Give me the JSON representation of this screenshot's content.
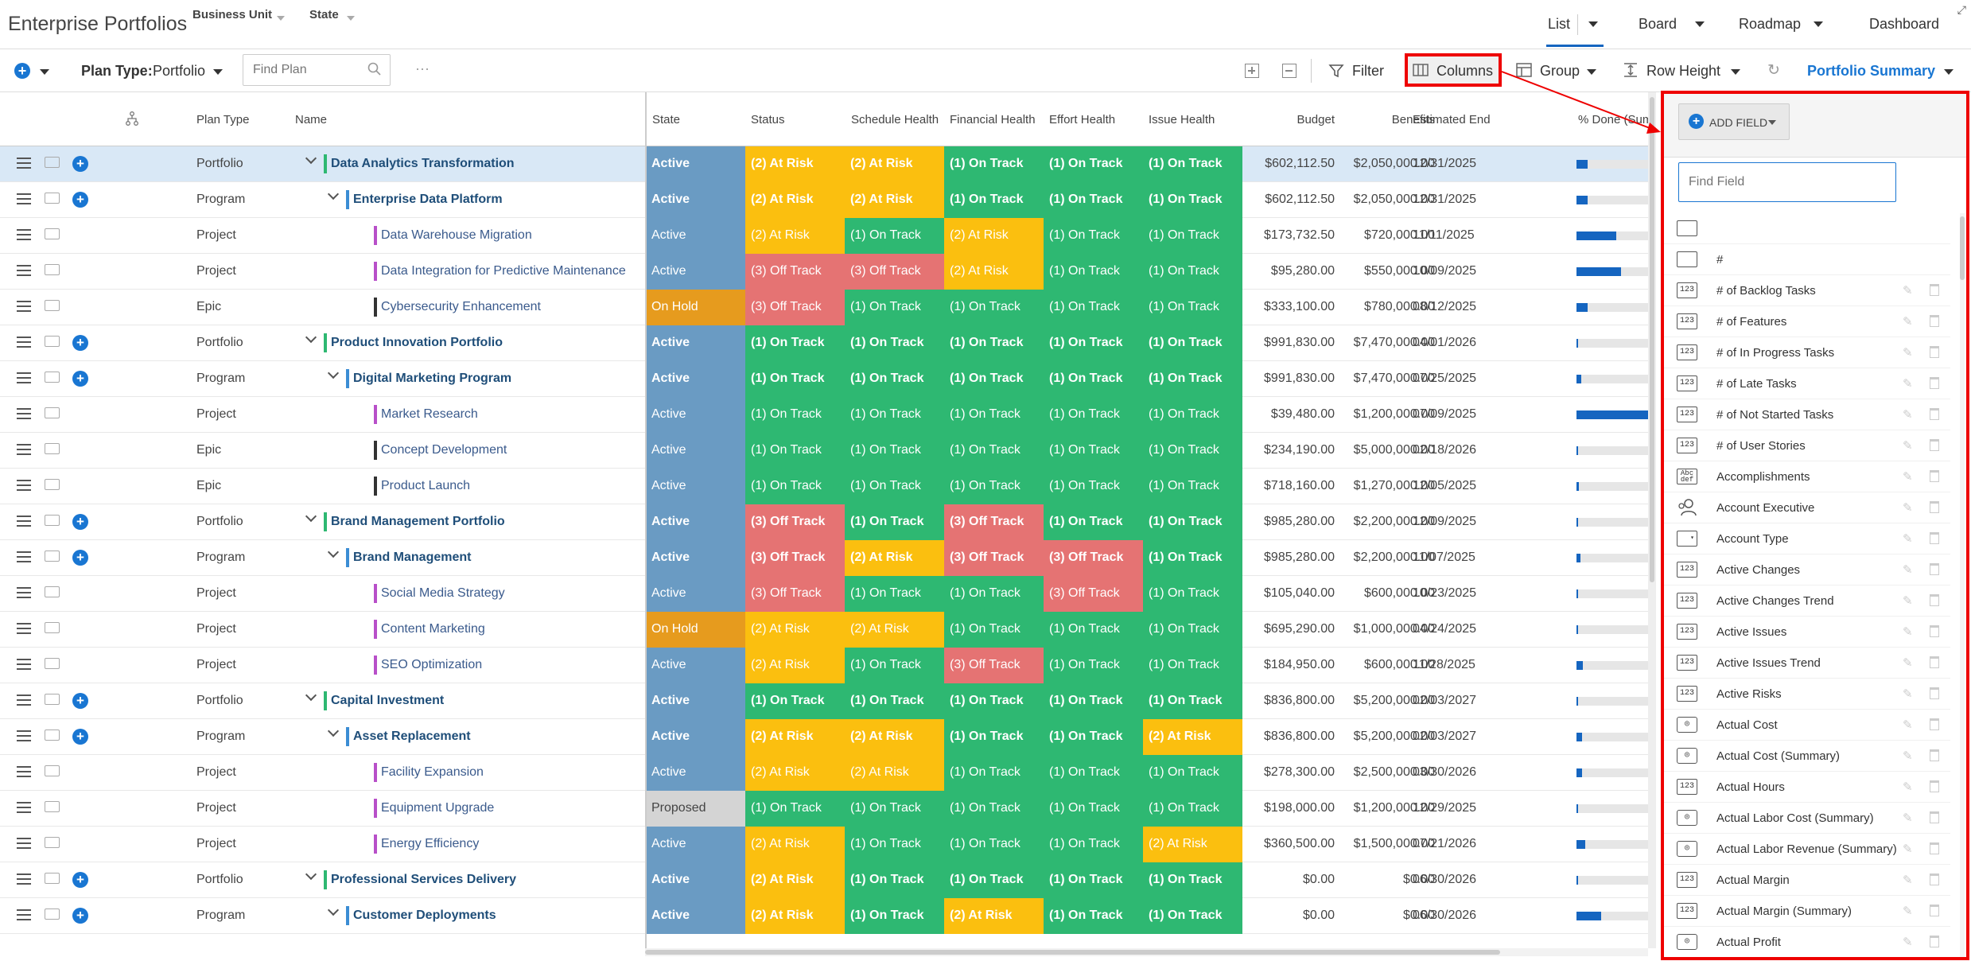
{
  "app": {
    "title": "Enterprise Portfolios"
  },
  "filters": [
    {
      "label": "Business Unit"
    },
    {
      "label": "State"
    }
  ],
  "view_tabs": [
    {
      "label": "List",
      "active": true
    },
    {
      "label": "Board"
    },
    {
      "label": "Roadmap"
    },
    {
      "label": "Dashboard"
    }
  ],
  "toolbar": {
    "plan_type_label": "Plan Type:",
    "plan_type_value": "Portfolio",
    "find_plan_placeholder": "Find Plan",
    "more": "···",
    "filter": "Filter",
    "columns": "Columns",
    "group": "Group",
    "row_height": "Row Height",
    "summary": "Portfolio Summary"
  },
  "columns": [
    "Plan Type",
    "Name",
    "State",
    "Status",
    "Schedule Health",
    "Financial Health",
    "Effort Health",
    "Issue Health",
    "Budget",
    "Benefits",
    "Estimated End",
    "% Done (Sum"
  ],
  "colors": {
    "active": "#6a9bc3",
    "on_hold": "#e69b1e",
    "proposed": "#d4d4d4",
    "on_track": "#2eb872",
    "at_risk": "#fbbf0f",
    "off_track": "#e57373",
    "accent": "#1976d2",
    "highlight": "#e00000"
  },
  "rows": [
    {
      "type": "Portfolio",
      "level": 0,
      "name": "Data Analytics Transformation",
      "color": "#2eb872",
      "state": "Active",
      "status": "(2) At Risk",
      "schedule": "(2) At Risk",
      "financial": "(1) On Track",
      "effort": "(1) On Track",
      "issue": "(1) On Track",
      "budget": "$602,112.50",
      "benefits": "$2,050,000.00",
      "end": "12/31/2025",
      "done": 0.15,
      "selected": true
    },
    {
      "type": "Program",
      "level": 1,
      "name": "Enterprise Data Platform",
      "color": "#3b8dd4",
      "state": "Active",
      "status": "(2) At Risk",
      "schedule": "(2) At Risk",
      "financial": "(1) On Track",
      "effort": "(1) On Track",
      "issue": "(1) On Track",
      "budget": "$602,112.50",
      "benefits": "$2,050,000.00",
      "end": "12/31/2025",
      "done": 0.15
    },
    {
      "type": "Project",
      "level": 2,
      "name": "Data Warehouse Migration",
      "color": "#b84fc9",
      "state": "Active",
      "status": "(2) At Risk",
      "schedule": "(1) On Track",
      "financial": "(2) At Risk",
      "effort": "(1) On Track",
      "issue": "(1) On Track",
      "budget": "$173,732.50",
      "benefits": "$720,000.00",
      "end": "11/11/2025",
      "done": 0.55
    },
    {
      "type": "Project",
      "level": 2,
      "name": "Data Integration for Predictive Maintenance",
      "color": "#b84fc9",
      "state": "Active",
      "status": "(3) Off Track",
      "schedule": "(3) Off Track",
      "financial": "(2) At Risk",
      "effort": "(1) On Track",
      "issue": "(1) On Track",
      "budget": "$95,280.00",
      "benefits": "$550,000.00",
      "end": "10/09/2025",
      "done": 0.62
    },
    {
      "type": "Epic",
      "level": 2,
      "name": "Cybersecurity Enhancement",
      "color": "#333",
      "state": "On Hold",
      "status": "(3) Off Track",
      "schedule": "(1) On Track",
      "financial": "(1) On Track",
      "effort": "(1) On Track",
      "issue": "(1) On Track",
      "budget": "$333,100.00",
      "benefits": "$780,000.00",
      "end": "08/12/2025",
      "done": 0.15
    },
    {
      "type": "Portfolio",
      "level": 0,
      "name": "Product Innovation Portfolio",
      "color": "#2eb872",
      "state": "Active",
      "status": "(1) On Track",
      "schedule": "(1) On Track",
      "financial": "(1) On Track",
      "effort": "(1) On Track",
      "issue": "(1) On Track",
      "budget": "$991,830.00",
      "benefits": "$7,470,000.00",
      "end": "04/01/2026",
      "done": 0
    },
    {
      "type": "Program",
      "level": 1,
      "name": "Digital Marketing Program",
      "color": "#3b8dd4",
      "state": "Active",
      "status": "(1) On Track",
      "schedule": "(1) On Track",
      "financial": "(1) On Track",
      "effort": "(1) On Track",
      "issue": "(1) On Track",
      "budget": "$991,830.00",
      "benefits": "$7,470,000.00",
      "end": "07/25/2025",
      "done": 0.07
    },
    {
      "type": "Project",
      "level": 2,
      "name": "Market Research",
      "color": "#b84fc9",
      "state": "Active",
      "status": "(1) On Track",
      "schedule": "(1) On Track",
      "financial": "(1) On Track",
      "effort": "(1) On Track",
      "issue": "(1) On Track",
      "budget": "$39,480.00",
      "benefits": "$1,200,000.00",
      "end": "07/09/2025",
      "done": 1.0
    },
    {
      "type": "Epic",
      "level": 2,
      "name": "Concept Development",
      "color": "#333",
      "state": "Active",
      "status": "(1) On Track",
      "schedule": "(1) On Track",
      "financial": "(1) On Track",
      "effort": "(1) On Track",
      "issue": "(1) On Track",
      "budget": "$234,190.00",
      "benefits": "$5,000,000.00",
      "end": "02/18/2026",
      "done": 0.02
    },
    {
      "type": "Epic",
      "level": 2,
      "name": "Product Launch",
      "color": "#333",
      "state": "Active",
      "status": "(1) On Track",
      "schedule": "(1) On Track",
      "financial": "(1) On Track",
      "effort": "(1) On Track",
      "issue": "(1) On Track",
      "budget": "$718,160.00",
      "benefits": "$1,270,000.00",
      "end": "12/05/2025",
      "done": 0.03
    },
    {
      "type": "Portfolio",
      "level": 0,
      "name": "Brand Management Portfolio",
      "color": "#2eb872",
      "state": "Active",
      "status": "(3) Off Track",
      "schedule": "(1) On Track",
      "financial": "(3) Off Track",
      "effort": "(1) On Track",
      "issue": "(1) On Track",
      "budget": "$985,280.00",
      "benefits": "$2,200,000.00",
      "end": "12/09/2025",
      "done": 0
    },
    {
      "type": "Program",
      "level": 1,
      "name": "Brand Management",
      "color": "#3b8dd4",
      "state": "Active",
      "status": "(3) Off Track",
      "schedule": "(2) At Risk",
      "financial": "(3) Off Track",
      "effort": "(3) Off Track",
      "issue": "(1) On Track",
      "budget": "$985,280.00",
      "benefits": "$2,200,000.00",
      "end": "11/07/2025",
      "done": 0.05
    },
    {
      "type": "Project",
      "level": 2,
      "name": "Social Media Strategy",
      "color": "#b84fc9",
      "state": "Active",
      "status": "(3) Off Track",
      "schedule": "(1) On Track",
      "financial": "(1) On Track",
      "effort": "(3) Off Track",
      "issue": "(1) On Track",
      "budget": "$105,040.00",
      "benefits": "$600,000.00",
      "end": "10/23/2025",
      "done": 0
    },
    {
      "type": "Project",
      "level": 2,
      "name": "Content Marketing",
      "color": "#b84fc9",
      "state": "On Hold",
      "status": "(2) At Risk",
      "schedule": "(2) At Risk",
      "financial": "(1) On Track",
      "effort": "(1) On Track",
      "issue": "(1) On Track",
      "budget": "$695,290.00",
      "benefits": "$1,000,000.00",
      "end": "04/24/2025",
      "done": 0
    },
    {
      "type": "Project",
      "level": 2,
      "name": "SEO Optimization",
      "color": "#b84fc9",
      "state": "Active",
      "status": "(2) At Risk",
      "schedule": "(1) On Track",
      "financial": "(3) Off Track",
      "effort": "(1) On Track",
      "issue": "(1) On Track",
      "budget": "$184,950.00",
      "benefits": "$600,000.00",
      "end": "11/28/2025",
      "done": 0.09
    },
    {
      "type": "Portfolio",
      "level": 0,
      "name": "Capital Investment",
      "color": "#2eb872",
      "state": "Active",
      "status": "(1) On Track",
      "schedule": "(1) On Track",
      "financial": "(1) On Track",
      "effort": "(1) On Track",
      "issue": "(1) On Track",
      "budget": "$836,800.00",
      "benefits": "$5,200,000.00",
      "end": "02/03/2027",
      "done": 0
    },
    {
      "type": "Program",
      "level": 1,
      "name": "Asset Replacement",
      "color": "#3b8dd4",
      "state": "Active",
      "status": "(2) At Risk",
      "schedule": "(2) At Risk",
      "financial": "(1) On Track",
      "effort": "(1) On Track",
      "issue": "(2) At Risk",
      "budget": "$836,800.00",
      "benefits": "$5,200,000.00",
      "end": "02/03/2027",
      "done": 0.08
    },
    {
      "type": "Project",
      "level": 2,
      "name": "Facility Expansion",
      "color": "#b84fc9",
      "state": "Active",
      "status": "(2) At Risk",
      "schedule": "(2) At Risk",
      "financial": "(1) On Track",
      "effort": "(1) On Track",
      "issue": "(1) On Track",
      "budget": "$278,300.00",
      "benefits": "$2,500,000.00",
      "end": "03/30/2026",
      "done": 0.08
    },
    {
      "type": "Project",
      "level": 2,
      "name": "Equipment Upgrade",
      "color": "#b84fc9",
      "state": "Proposed",
      "status": "(1) On Track",
      "schedule": "(1) On Track",
      "financial": "(1) On Track",
      "effort": "(1) On Track",
      "issue": "(1) On Track",
      "budget": "$198,000.00",
      "benefits": "$1,200,000.00",
      "end": "12/29/2025",
      "done": 0
    },
    {
      "type": "Project",
      "level": 2,
      "name": "Energy Efficiency",
      "color": "#b84fc9",
      "state": "Active",
      "status": "(2) At Risk",
      "schedule": "(1) On Track",
      "financial": "(1) On Track",
      "effort": "(1) On Track",
      "issue": "(2) At Risk",
      "budget": "$360,500.00",
      "benefits": "$1,500,000.00",
      "end": "07/21/2026",
      "done": 0.12
    },
    {
      "type": "Portfolio",
      "level": 0,
      "name": "Professional Services Delivery",
      "color": "#2eb872",
      "state": "Active",
      "status": "(2) At Risk",
      "schedule": "(1) On Track",
      "financial": "(1) On Track",
      "effort": "(1) On Track",
      "issue": "(1) On Track",
      "budget": "$0.00",
      "benefits": "$0.00",
      "end": "06/30/2026",
      "done": 0
    },
    {
      "type": "Program",
      "level": 1,
      "name": "Customer Deployments",
      "color": "#3b8dd4",
      "state": "Active",
      "status": "(2) At Risk",
      "schedule": "(1) On Track",
      "financial": "(2) At Risk",
      "effort": "(1) On Track",
      "issue": "(1) On Track",
      "budget": "$0.00",
      "benefits": "$0.00",
      "end": "06/30/2026",
      "done": 0.35
    }
  ],
  "field_panel": {
    "add_field": "ADD FIELD",
    "find_placeholder": "Find Field",
    "fields": [
      {
        "label": "",
        "icon": "box"
      },
      {
        "label": "#",
        "icon": "box"
      },
      {
        "label": "# of Backlog Tasks",
        "icon": "123"
      },
      {
        "label": "# of Features",
        "icon": "123"
      },
      {
        "label": "# of In Progress Tasks",
        "icon": "123"
      },
      {
        "label": "# of Late Tasks",
        "icon": "123"
      },
      {
        "label": "# of Not Started Tasks",
        "icon": "123"
      },
      {
        "label": "# of User Stories",
        "icon": "123"
      },
      {
        "label": "Accomplishments",
        "icon": "abc"
      },
      {
        "label": "Account Executive",
        "icon": "users"
      },
      {
        "label": "Account Type",
        "icon": "dropdown"
      },
      {
        "label": "Active Changes",
        "icon": "123"
      },
      {
        "label": "Active Changes Trend",
        "icon": "123"
      },
      {
        "label": "Active Issues",
        "icon": "123"
      },
      {
        "label": "Active Issues Trend",
        "icon": "123"
      },
      {
        "label": "Active Risks",
        "icon": "123"
      },
      {
        "label": "Actual Cost",
        "icon": "money"
      },
      {
        "label": "Actual Cost (Summary)",
        "icon": "money"
      },
      {
        "label": "Actual Hours",
        "icon": "123"
      },
      {
        "label": "Actual Labor Cost (Summary)",
        "icon": "money"
      },
      {
        "label": "Actual Labor Revenue (Summary)",
        "icon": "money"
      },
      {
        "label": "Actual Margin",
        "icon": "123"
      },
      {
        "label": "Actual Margin (Summary)",
        "icon": "123"
      },
      {
        "label": "Actual Profit",
        "icon": "money"
      }
    ]
  }
}
